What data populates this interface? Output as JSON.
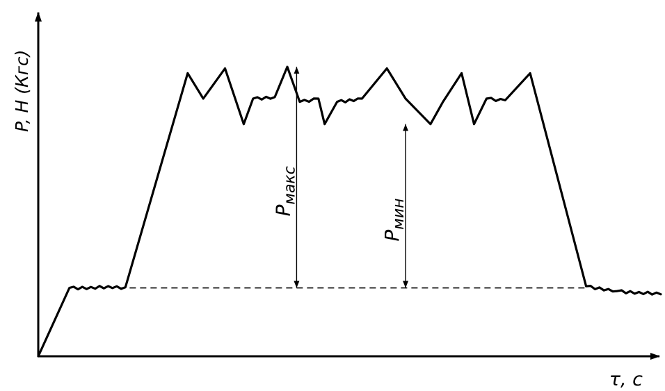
{
  "chart_data": {
    "type": "line",
    "title": "",
    "xlabel": "τ, с",
    "ylabel": "P, Н (Кгс)",
    "ticks": "none",
    "grid": false,
    "legend": "none",
    "xlim": [
      0,
      100
    ],
    "ylim": [
      0,
      100
    ],
    "series": [
      {
        "x": [
          0,
          5,
          14,
          24,
          26.5,
          30,
          33,
          34.5,
          38,
          40,
          42,
          45,
          46,
          48,
          52,
          56,
          59,
          63,
          65,
          68,
          70,
          72,
          75,
          79,
          88,
          93,
          100
        ],
        "y": [
          0,
          21.5,
          21.7,
          89,
          81,
          90.5,
          73,
          81,
          81.5,
          91,
          80,
          81,
          73,
          80,
          81,
          90.5,
          81,
          73,
          80,
          89,
          73,
          81,
          80.5,
          89,
          22,
          20.5,
          19.5
        ]
      }
    ],
    "annotations": [
      {
        "label_main": "P",
        "label_sub": "макс",
        "x": 41.5,
        "y_from": 21.5,
        "y_to": 91
      },
      {
        "label_main": "P",
        "label_sub": "мин",
        "x": 59,
        "y_from": 21.5,
        "y_to": 73
      }
    ],
    "reference_line": {
      "style": "dashed",
      "y": 21.5,
      "x_from": 13,
      "x_to": 88
    }
  }
}
